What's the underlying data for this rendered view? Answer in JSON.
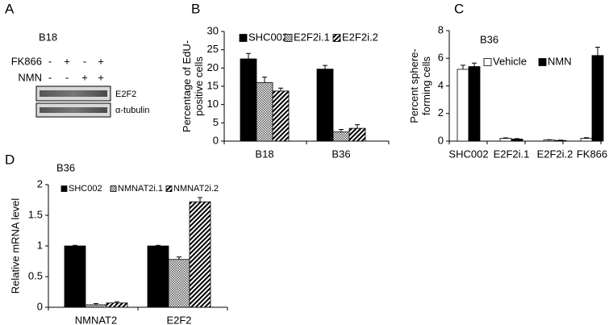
{
  "blot": {
    "panel": "A",
    "title": "B18",
    "rows": [
      {
        "label": "FK866",
        "signs": [
          "-",
          "+",
          "-",
          "+"
        ]
      },
      {
        "label": "NMN",
        "signs": [
          "-",
          "-",
          "+",
          "+"
        ]
      }
    ],
    "bands": [
      "E2F2",
      "α-tubulin"
    ]
  },
  "chart_data": [
    {
      "type": "bar",
      "panel": "B",
      "ylabel": [
        "Percentage of EdU-",
        "positive cells"
      ],
      "categories": [
        "B18",
        "B36"
      ],
      "series": [
        {
          "name": "SHC002",
          "color": "#000000",
          "values": [
            22.5,
            19.7
          ],
          "errors": [
            1.5,
            1.0
          ]
        },
        {
          "name": "E2F2i.1",
          "color": "#888888",
          "pattern": "checker",
          "values": [
            16,
            2.5
          ],
          "errors": [
            1.5,
            0.7
          ]
        },
        {
          "name": "E2F2i.2",
          "color": "#000000",
          "pattern": "hatch",
          "values": [
            13.7,
            3.5
          ],
          "errors": [
            0.8,
            1.0
          ]
        }
      ],
      "ylim": [
        0,
        30
      ],
      "yticks": [
        0,
        5,
        10,
        15,
        20,
        25,
        30
      ]
    },
    {
      "type": "bar",
      "panel": "C",
      "title": "B36",
      "ylabel": [
        "Percent sphere-",
        "forming cells"
      ],
      "categories": [
        "SHC002",
        "E2F2i.1",
        "E2F2i.2",
        "FK866"
      ],
      "series": [
        {
          "name": "Vehicle",
          "color": "#ffffff",
          "values": [
            5.2,
            0.2,
            0.08,
            0.2
          ],
          "errors": [
            0.3,
            0.03,
            0.02,
            0.05
          ]
        },
        {
          "name": "NMN",
          "color": "#000000",
          "values": [
            5.4,
            0.15,
            0.05,
            6.2
          ],
          "errors": [
            0.25,
            0.03,
            0.02,
            0.6
          ]
        }
      ],
      "ylim": [
        0,
        8
      ],
      "yticks": [
        0,
        2,
        4,
        6,
        8
      ]
    },
    {
      "type": "bar",
      "panel": "D",
      "title": "B36",
      "ylabel": [
        "Relative mRNA level"
      ],
      "categories": [
        "NMNAT2",
        "E2F2"
      ],
      "series": [
        {
          "name": "SHC002",
          "color": "#000000",
          "values": [
            1.0,
            1.0
          ],
          "errors": [
            0.01,
            0.01
          ]
        },
        {
          "name": "NMNAT2i.1",
          "color": "#888888",
          "pattern": "checker",
          "values": [
            0.04,
            0.78
          ],
          "errors": [
            0.02,
            0.04
          ]
        },
        {
          "name": "NMNAT2i.2",
          "color": "#000000",
          "pattern": "hatch",
          "values": [
            0.07,
            1.72
          ],
          "errors": [
            0.02,
            0.07
          ]
        }
      ],
      "ylim": [
        0,
        2
      ],
      "yticks": [
        0,
        0.5,
        1,
        1.5,
        2
      ]
    }
  ]
}
